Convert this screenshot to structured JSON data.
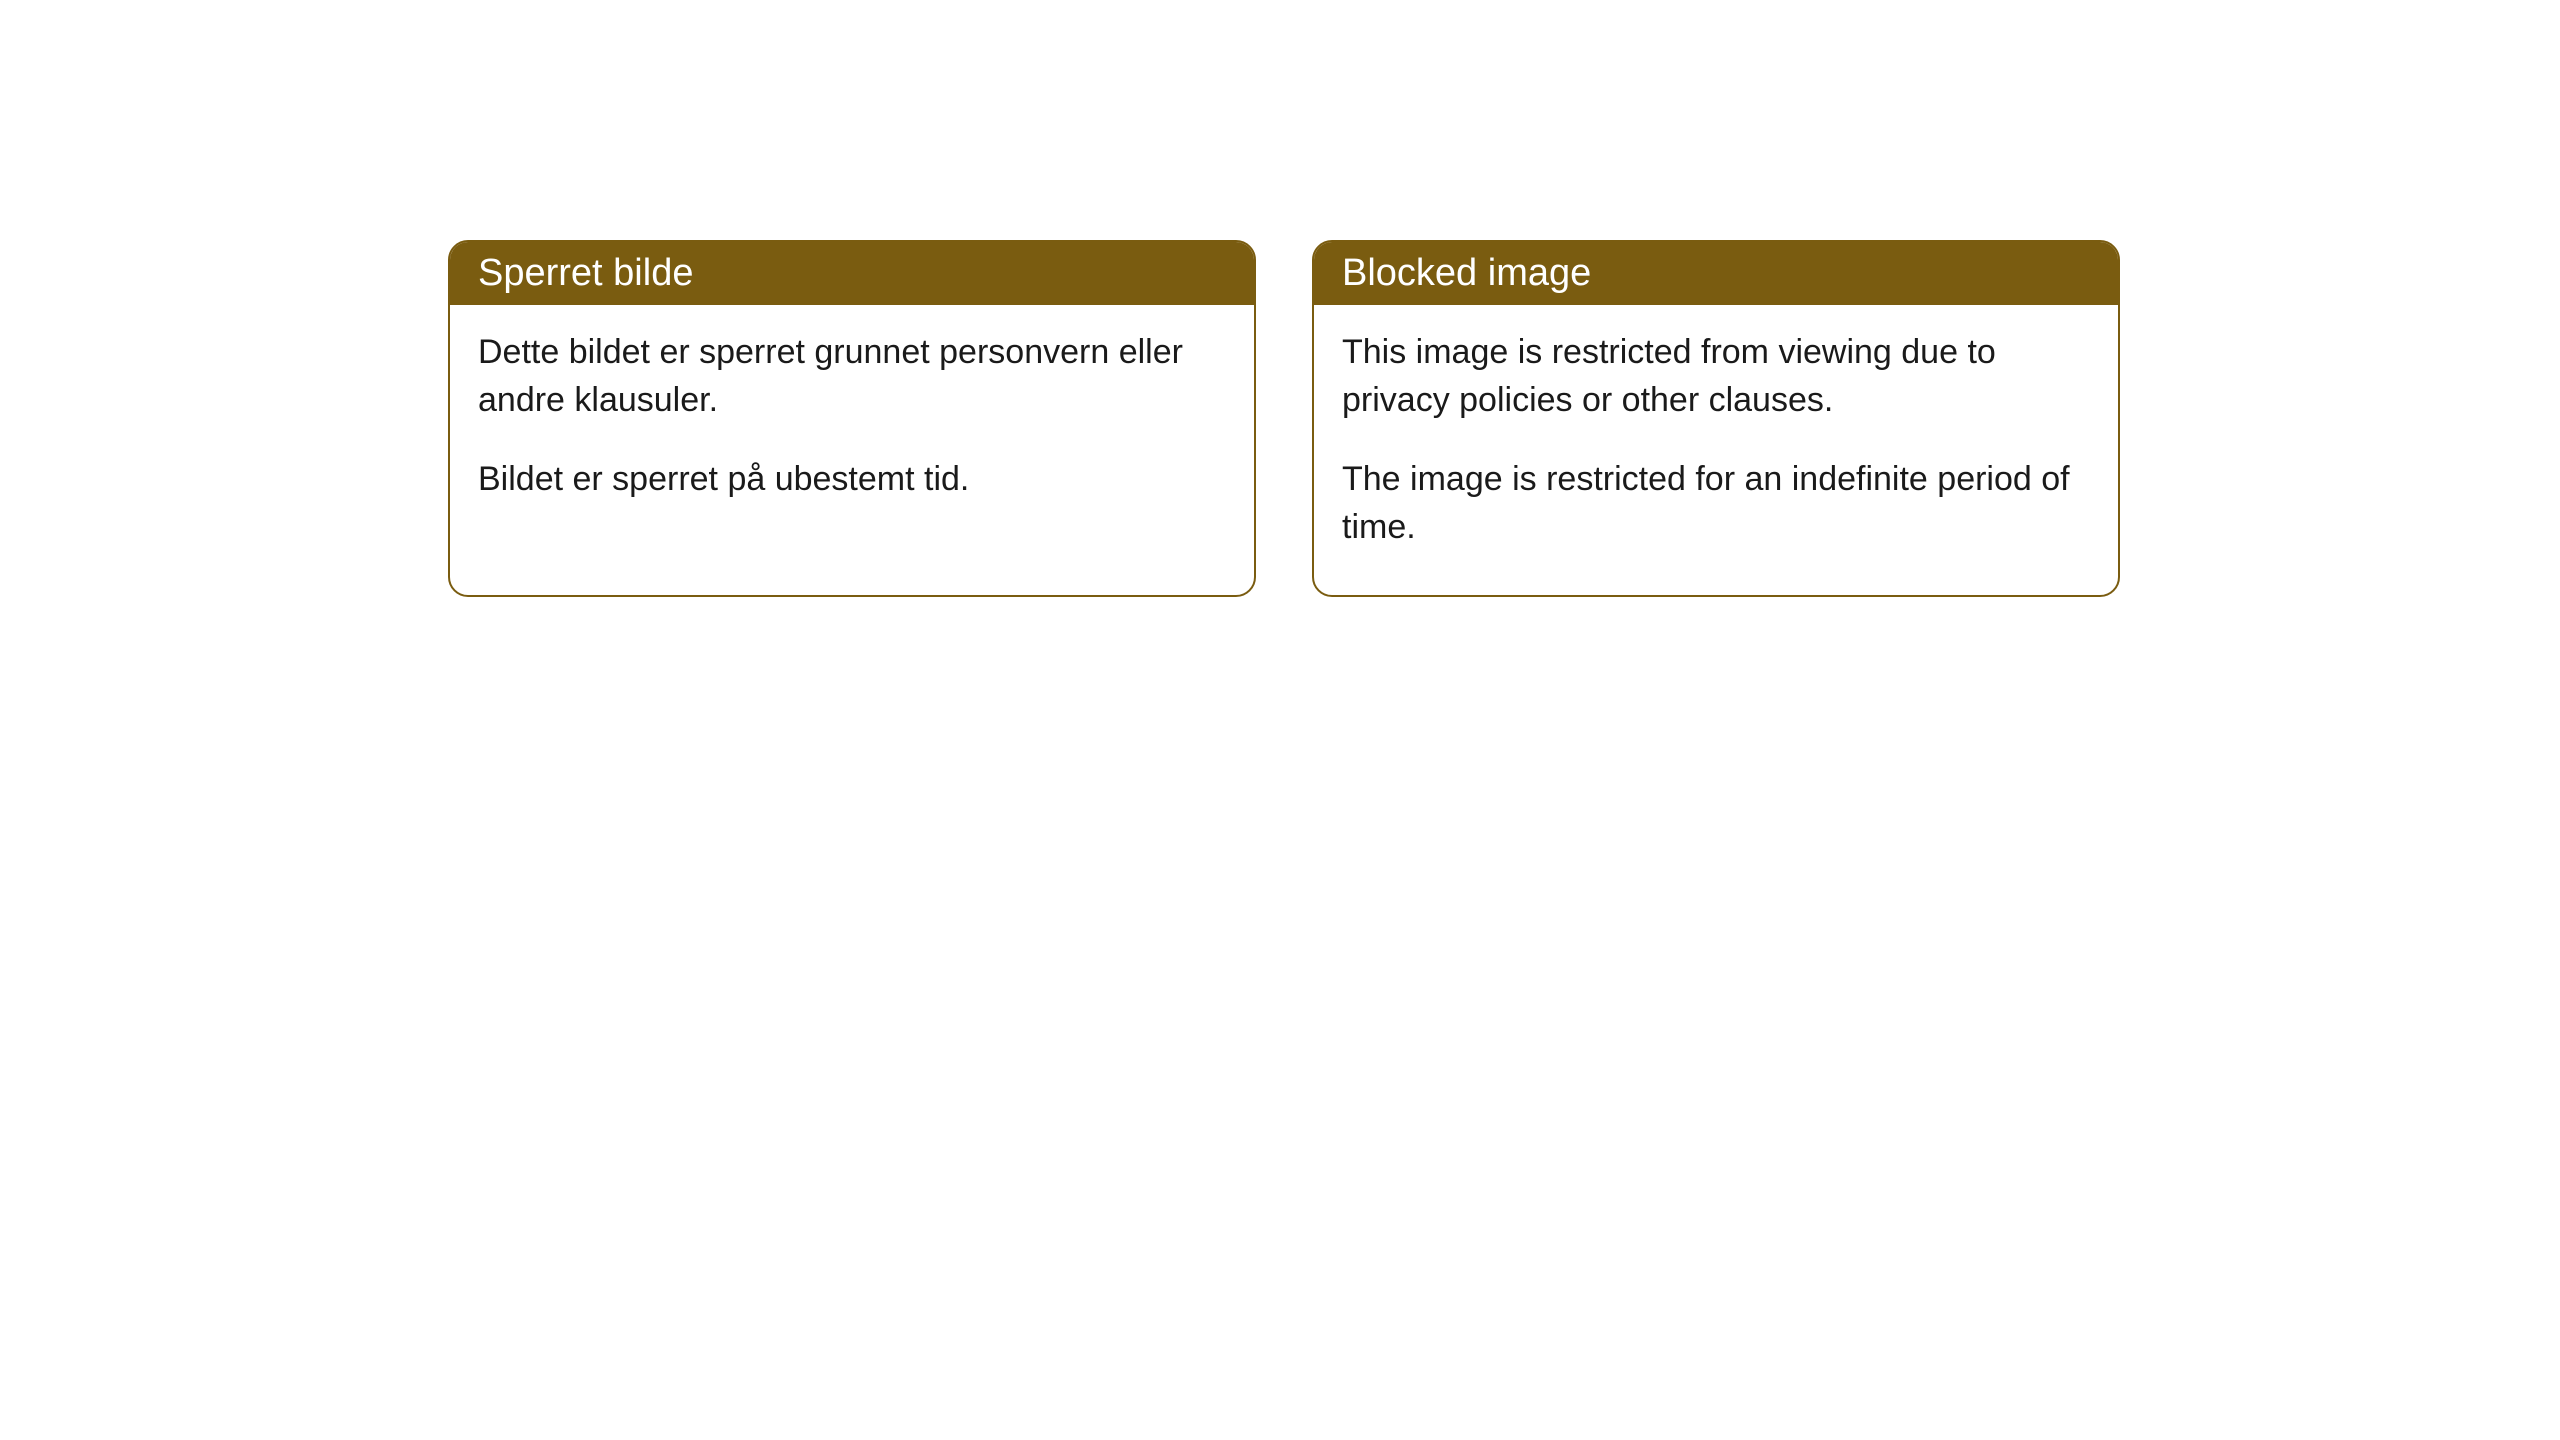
{
  "cards": [
    {
      "title": "Sperret bilde",
      "paragraph1": "Dette bildet er sperret grunnet personvern eller andre klausuler.",
      "paragraph2": "Bildet er sperret på ubestemt tid."
    },
    {
      "title": "Blocked image",
      "paragraph1": "This image is restricted from viewing due to privacy policies or other clauses.",
      "paragraph2": "The image is restricted for an indefinite period of time."
    }
  ],
  "styling": {
    "header_background": "#7a5c10",
    "header_text_color": "#ffffff",
    "card_border_color": "#7a5c10",
    "card_background": "#ffffff",
    "body_text_color": "#1a1a1a",
    "page_background": "#ffffff",
    "border_radius": 20,
    "header_font_size": 38,
    "body_font_size": 34
  }
}
